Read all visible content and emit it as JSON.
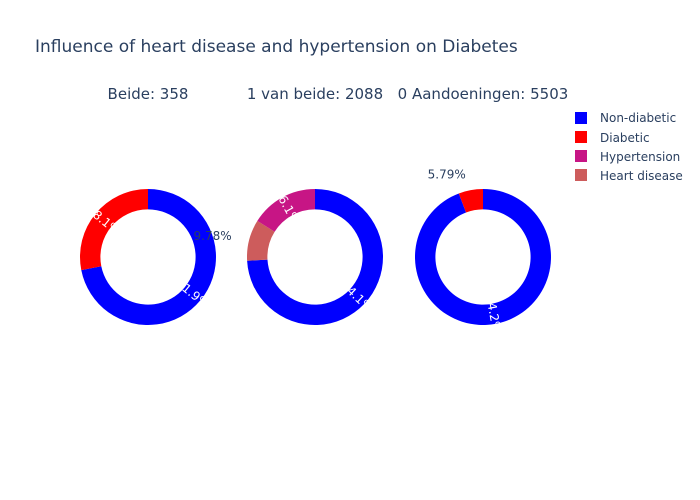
{
  "chart_data": {
    "type": "pie",
    "title": "Influence of heart disease and hypertension on Diabetes",
    "legend_position": "top-right",
    "legend": [
      {
        "label": "Non-diabetic",
        "color": "#0000ff"
      },
      {
        "label": "Diabetic",
        "color": "#ff0000"
      },
      {
        "label": "Hypertension",
        "color": "#c71585"
      },
      {
        "label": "Heart disease",
        "color": "#cd5c5c"
      }
    ],
    "subplots": [
      {
        "subtitle": "Beide: 358",
        "hole": 0.7,
        "slices": [
          {
            "name": "Non-diabetic",
            "value": 71.9,
            "label": "71.9%",
            "color": "#0000ff"
          },
          {
            "name": "Diabetic",
            "value": 28.1,
            "label": "28.1%",
            "color": "#ff0000"
          }
        ]
      },
      {
        "subtitle": "1 van beide: 2088",
        "hole": 0.7,
        "slices": [
          {
            "name": "Non-diabetic",
            "value": 74.1,
            "label": "74.1%",
            "color": "#0000ff"
          },
          {
            "name": "Heart disease",
            "value": 9.78,
            "label": "9.78%",
            "color": "#cd5c5c"
          },
          {
            "name": "Hypertension",
            "value": 16.1,
            "label": "16.1%",
            "color": "#c71585"
          }
        ]
      },
      {
        "subtitle": "0 Aandoeningen: 5503",
        "hole": 0.7,
        "slices": [
          {
            "name": "Non-diabetic",
            "value": 94.2,
            "label": "94.2%",
            "color": "#0000ff"
          },
          {
            "name": "Diabetic",
            "value": 5.79,
            "label": "5.79%",
            "color": "#ff0000"
          }
        ]
      }
    ]
  }
}
